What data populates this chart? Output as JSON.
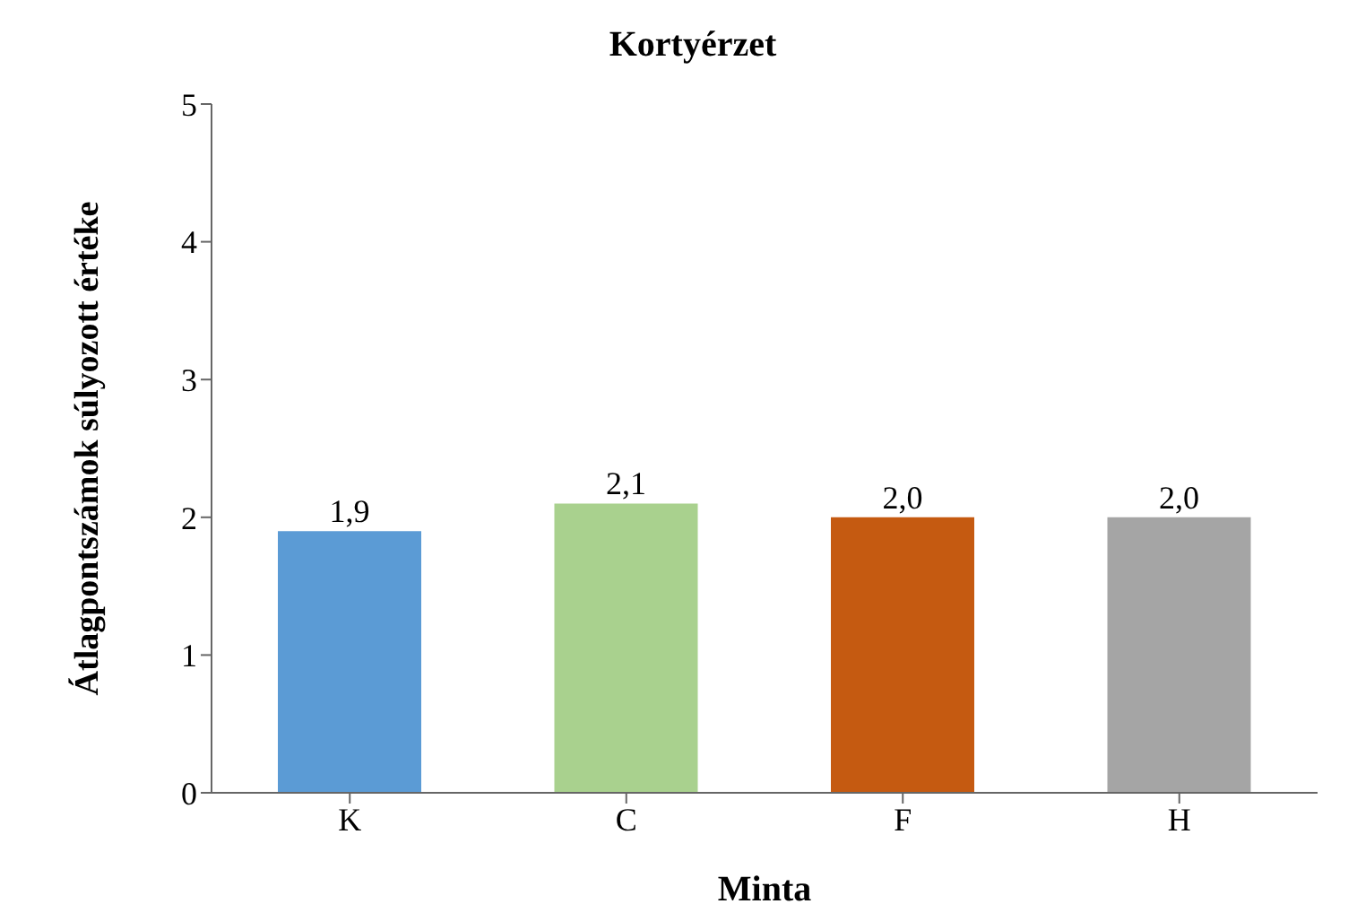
{
  "chart_data": {
    "type": "bar",
    "title": "Kortyérzet",
    "xlabel": "Minta",
    "ylabel": "Átlagpontszámok súlyozott értéke",
    "categories": [
      "K",
      "C",
      "F",
      "H"
    ],
    "values": [
      1.9,
      2.1,
      2.0,
      2.0
    ],
    "colors": [
      "#5b9bd5",
      "#a9d18e",
      "#c55a11",
      "#a5a5a5"
    ],
    "value_labels": [
      "1,9",
      "2,1",
      "2,0",
      "2,0"
    ],
    "ylim": [
      0,
      5
    ],
    "yticks": [
      0,
      1,
      2,
      3,
      4,
      5
    ],
    "grid": false,
    "legend": false
  }
}
